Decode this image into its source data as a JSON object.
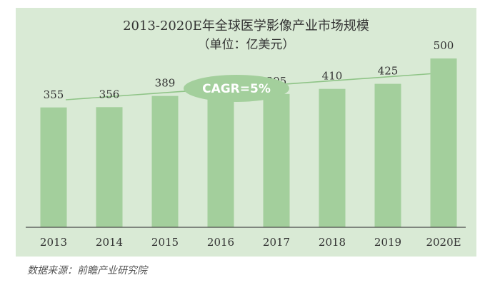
{
  "chart_data": {
    "type": "bar",
    "title": "2013-2020E年全球医学影像产业市场规模",
    "subtitle": "（单位：亿美元）",
    "categories": [
      "2013",
      "2014",
      "2015",
      "2016",
      "2017",
      "2018",
      "2019",
      "2020E"
    ],
    "values": [
      355,
      356,
      389,
      392,
      395,
      410,
      425,
      500
    ],
    "ylim": [
      0,
      650
    ],
    "annotation": "CAGR=5%",
    "grid": false,
    "colors": {
      "background": "#d9ead5",
      "bar": "#a3cf9c",
      "axis": "#4a4a4a",
      "label": "#333333",
      "cagr_ellipse": "#a3cf9c",
      "cagr_text": "#ffffff",
      "arrow": "#8fc487"
    }
  },
  "source": "数据来源：前瞻产业研究院"
}
